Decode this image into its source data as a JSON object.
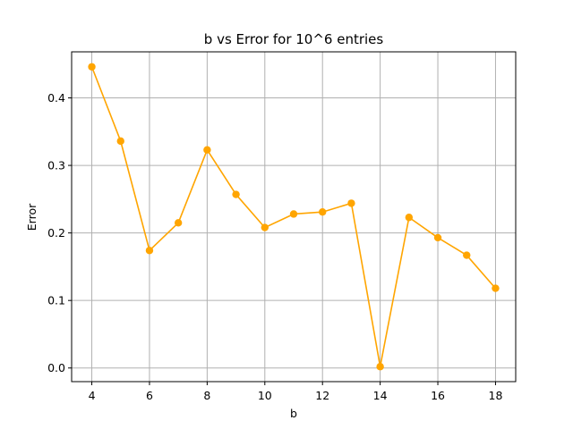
{
  "chart_data": {
    "type": "line",
    "title": "b vs Error for 10^6 entries",
    "xlabel": "b",
    "ylabel": "Error",
    "x": [
      4,
      5,
      6,
      7,
      8,
      9,
      10,
      11,
      12,
      13,
      14,
      15,
      16,
      17,
      18
    ],
    "series": [
      {
        "values": [
          0.446,
          0.336,
          0.174,
          0.215,
          0.323,
          0.257,
          0.208,
          0.228,
          0.231,
          0.244,
          0.002,
          0.223,
          0.193,
          0.167,
          0.118
        ],
        "color": "#ffa500",
        "marker": "circle"
      }
    ],
    "xlim": [
      3.3,
      18.7
    ],
    "ylim": [
      -0.0202,
      0.4682
    ],
    "xticks": [
      4,
      6,
      8,
      10,
      12,
      14,
      16,
      18
    ],
    "yticks": [
      0.0,
      0.1,
      0.2,
      0.3,
      0.4
    ],
    "ytick_labels": [
      "0.0",
      "0.1",
      "0.2",
      "0.3",
      "0.4"
    ],
    "grid": true,
    "grid_color": "#b0b0b0"
  }
}
